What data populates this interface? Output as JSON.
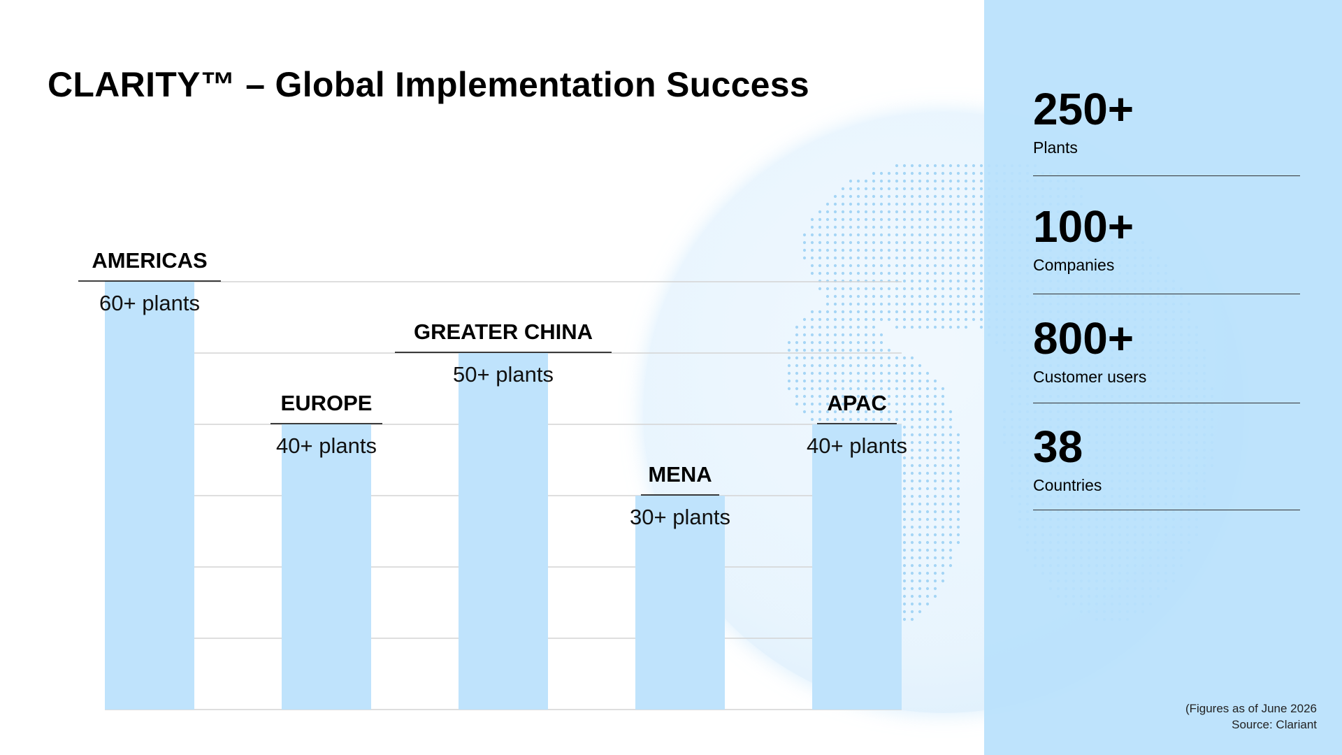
{
  "title": "CLARITY™ – Global Implementation Success",
  "chart_data": {
    "type": "bar",
    "categories": [
      "AMERICAS",
      "EUROPE",
      "GREATER CHINA",
      "MENA",
      "APAC"
    ],
    "values": [
      60,
      40,
      50,
      30,
      40
    ],
    "data_labels": [
      "60+ plants",
      "40+ plants",
      "50+ plants",
      "30+ plants",
      "40+ plants"
    ],
    "ylim": [
      0,
      60
    ],
    "grid": true,
    "bar_color": "#bfe3fc"
  },
  "stats": [
    {
      "value": "250+",
      "label": "Plants"
    },
    {
      "value": "100+",
      "label": "Companies"
    },
    {
      "value": "800+",
      "label": "Customer users"
    },
    {
      "value": "38",
      "label": "Countries"
    }
  ],
  "footnote": {
    "line1": "(Figures as of June 2026",
    "line2": "Source: Clariant"
  },
  "colors": {
    "accent": "#bfe3fc",
    "panel": "#b9e1fc",
    "globe_dots": "#8cc9f2"
  }
}
